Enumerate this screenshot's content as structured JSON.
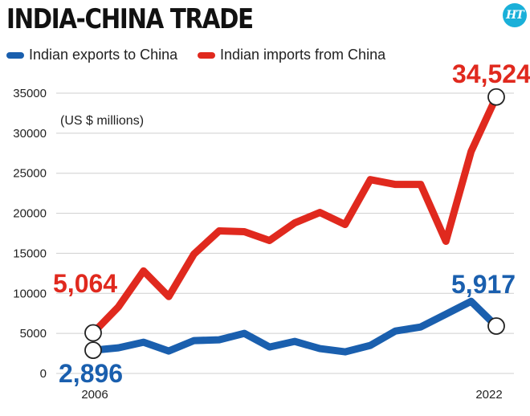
{
  "title": "INDIA-CHINA TRADE",
  "logo_text": "HT",
  "colors": {
    "exports": "#1a5fae",
    "imports": "#e0291e",
    "grid": "#cfcfcf"
  },
  "chart_data": {
    "type": "line",
    "title": "INDIA-CHINA TRADE",
    "unit_label": "(US $ millions)",
    "x_start_label": "2006",
    "x_end_label": "2022",
    "x": [
      2006,
      2007,
      2008,
      2009,
      2010,
      2011,
      2012,
      2013,
      2014,
      2015,
      2016,
      2017,
      2018,
      2019,
      2020,
      2021,
      2022
    ],
    "ylim": [
      0,
      35000
    ],
    "yticks": [
      "0",
      "5000",
      "10000",
      "15000",
      "20000",
      "25000",
      "30000",
      "35000"
    ],
    "grid": true,
    "legend_position": "top-left",
    "series": [
      {
        "name": "Indian exports to China",
        "color": "#1a5fae",
        "values": [
          2896,
          3200,
          3900,
          2800,
          4100,
          4200,
          5000,
          3300,
          4000,
          3100,
          2700,
          3500,
          5300,
          5800,
          7400,
          9000,
          5917
        ],
        "start_label": "2,896",
        "end_label": "5,917"
      },
      {
        "name": "Indian imports from China",
        "color": "#e0291e",
        "values": [
          5064,
          8300,
          12800,
          9600,
          14900,
          17800,
          17700,
          16600,
          18800,
          20100,
          18600,
          24200,
          23600,
          23600,
          16500,
          27700,
          34524
        ],
        "start_label": "5,064",
        "end_label": "34,524"
      }
    ]
  }
}
